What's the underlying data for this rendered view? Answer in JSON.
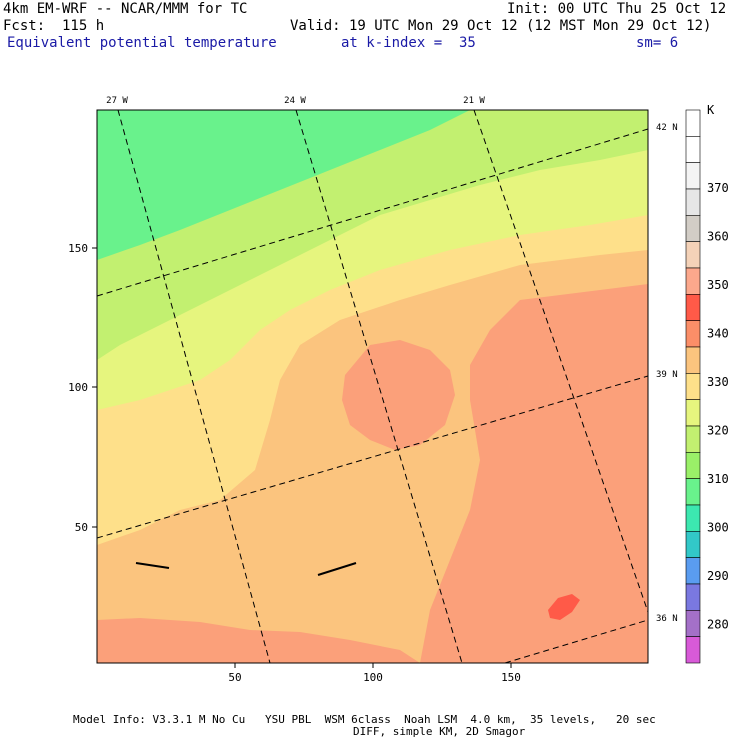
{
  "header": {
    "model": "4km EM-WRF -- NCAR/MMM for TC",
    "init": "Init: 00 UTC Thu 25 Oct 12",
    "fcst": "Fcst:  115 h",
    "valid": "Valid: 19 UTC Mon 29 Oct 12 (12 MST Mon 29 Oct 12)",
    "field": "Equivalent potential temperature",
    "level": "at k-index =  35",
    "smoothing": "sm= 6"
  },
  "map": {
    "x_ticks": [
      "50",
      "100",
      "150"
    ],
    "y_ticks": [
      "150",
      "100",
      "50"
    ],
    "lon_labels": [
      "27 W",
      "24 W",
      "21 W"
    ],
    "lat_labels": [
      "42 N",
      "39 N",
      "36 N"
    ]
  },
  "colorbar": {
    "unit": "K",
    "labels": [
      "370",
      "360",
      "350",
      "340",
      "330",
      "320",
      "310",
      "300",
      "290",
      "280"
    ],
    "colors": [
      "#ffffff",
      "#ffffff",
      "#f4f4f4",
      "#e6e6e6",
      "#d2cdc6",
      "#f4d2b8",
      "#fca88c",
      "#ff5a48",
      "#fb8e68",
      "#fbc47e",
      "#fee08a",
      "#e6f57e",
      "#c2f070",
      "#9af068",
      "#69f28c",
      "#3ce8b0",
      "#32c8c8",
      "#5a9cf0",
      "#7a78e0",
      "#a470c8",
      "#d85ad8"
    ]
  },
  "footer": {
    "line1": "Model Info: V3.3.1 M No Cu   YSU PBL  WSM 6class  Noah LSM  4.0 km,  35 levels,   20 sec",
    "line2": "DIFF, simple KM, 2D Smagor"
  }
}
